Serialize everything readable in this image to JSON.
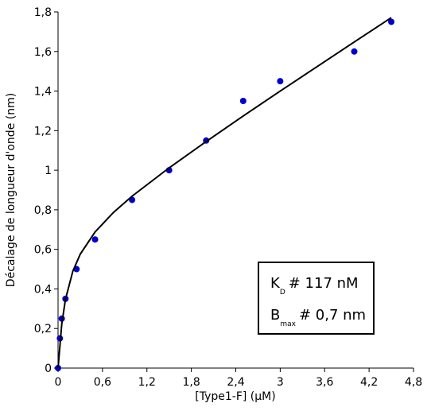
{
  "chart_data": {
    "type": "scatter",
    "xlabel": "[Type1-F] (µM)",
    "ylabel": "Décalage de longueur d'onde (nm)",
    "xlim": [
      0,
      4.8
    ],
    "ylim": [
      0,
      1.8
    ],
    "xticks": [
      0,
      {
        "value": 0.6,
        "label": "0,6"
      },
      {
        "value": 1.2,
        "label": "1,2"
      },
      {
        "value": 1.8,
        "label": "1,8"
      },
      {
        "value": 2.4,
        "label": "2,4"
      },
      {
        "value": 3,
        "label": "3"
      },
      {
        "value": 3.6,
        "label": "3,6"
      },
      {
        "value": 4.2,
        "label": "4,2"
      },
      {
        "value": 4.8,
        "label": "4,8"
      }
    ],
    "yticks": [
      0,
      {
        "value": 0.2,
        "label": "0,2"
      },
      {
        "value": 0.4,
        "label": "0,4"
      },
      {
        "value": 0.6,
        "label": "0,6"
      },
      {
        "value": 0.8,
        "label": "0,8"
      },
      1,
      {
        "value": 1.2,
        "label": "1,2"
      },
      {
        "value": 1.4,
        "label": "1,4"
      },
      {
        "value": 1.6,
        "label": "1,6"
      },
      {
        "value": 1.8,
        "label": "1,8"
      }
    ],
    "series": [
      {
        "type": "scatter",
        "color": "#0000cc",
        "x": [
          0,
          0.025,
          0.05,
          0.1,
          0.25,
          0.5,
          1.0,
          1.5,
          2.0,
          2.5,
          3.0,
          4.0,
          4.5
        ],
        "values": [
          0,
          0.15,
          0.25,
          0.35,
          0.5,
          0.65,
          0.85,
          1.0,
          1.15,
          1.35,
          1.45,
          1.6,
          1.75
        ]
      },
      {
        "type": "line",
        "color": "#000000",
        "x": [
          0,
          0.05,
          0.1,
          0.2,
          0.3,
          0.5,
          0.75,
          1,
          1.5,
          2,
          2.5,
          3,
          3.5,
          4,
          4.5
        ],
        "values": [
          0,
          0.222,
          0.347,
          0.49,
          0.576,
          0.688,
          0.787,
          0.869,
          1.012,
          1.145,
          1.274,
          1.4,
          1.524,
          1.648,
          1.771
        ]
      }
    ],
    "annotations": [
      {
        "main": "K",
        "sub": "D",
        "rest": "# 117 nM"
      },
      {
        "main": "B",
        "sub": "max",
        "rest": "# 0,7 nm"
      }
    ]
  }
}
